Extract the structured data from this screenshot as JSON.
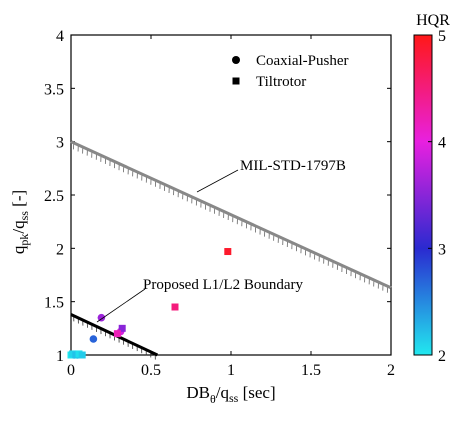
{
  "chart_data": {
    "type": "scatter",
    "title": "",
    "xlabel": {
      "main": "DB",
      "sub1": "θ",
      "mid": "/q",
      "sub2": "ss",
      "tail": " [sec]"
    },
    "ylabel": {
      "main": "q",
      "sub1": "pk",
      "mid": "/q",
      "sub2": "ss",
      "tail": " [-]"
    },
    "xlim": [
      0,
      2
    ],
    "ylim": [
      1,
      4
    ],
    "x_ticks": [
      0,
      0.5,
      1,
      1.5,
      2
    ],
    "x_tick_labels": [
      "0",
      "0.5",
      "1",
      "1.5",
      "2"
    ],
    "y_ticks": [
      1,
      1.5,
      2,
      2.5,
      3,
      3.5,
      4
    ],
    "y_tick_labels": [
      "1",
      "1.5",
      "2",
      "2.5",
      "3",
      "3.5",
      "4"
    ],
    "grid": false,
    "legend": {
      "placement": "top-right",
      "entries": [
        {
          "label": "Coaxial-Pusher",
          "marker": "circle"
        },
        {
          "label": "Tiltrotor",
          "marker": "square"
        }
      ]
    },
    "colorbar": {
      "title": "HQR",
      "min": 2,
      "max": 5,
      "ticks": [
        2,
        3,
        4,
        5
      ],
      "tick_labels": [
        "2",
        "3",
        "4",
        "5"
      ],
      "colors": [
        "#22e8ef",
        "#2a2ad0",
        "#e820e0",
        "#ff1818"
      ]
    },
    "series": [
      {
        "name": "Coaxial-Pusher",
        "marker": "circle",
        "points": [
          {
            "x": 0.14,
            "y": 1.15,
            "hqr": 2.7
          },
          {
            "x": 0.19,
            "y": 1.35,
            "hqr": 3.6
          },
          {
            "x": 0.31,
            "y": 1.22,
            "hqr": 3.9
          },
          {
            "x": 0.02,
            "y": 1.0,
            "hqr": 2.05
          },
          {
            "x": 0.04,
            "y": 1.0,
            "hqr": 2.1
          }
        ]
      },
      {
        "name": "Tiltrotor",
        "marker": "square",
        "points": [
          {
            "x": 0.98,
            "y": 1.97,
            "hqr": 4.9
          },
          {
            "x": 0.65,
            "y": 1.45,
            "hqr": 4.5
          },
          {
            "x": 0.32,
            "y": 1.25,
            "hqr": 3.5
          },
          {
            "x": 0.29,
            "y": 1.2,
            "hqr": 4.2
          },
          {
            "x": 0.0,
            "y": 1.0,
            "hqr": 2.0
          },
          {
            "x": 0.01,
            "y": 1.01,
            "hqr": 2.1
          },
          {
            "x": 0.03,
            "y": 1.0,
            "hqr": 2.2
          },
          {
            "x": 0.05,
            "y": 1.01,
            "hqr": 2.05
          },
          {
            "x": 0.07,
            "y": 1.0,
            "hqr": 2.15
          }
        ]
      }
    ],
    "boundaries": [
      {
        "label": "MIL-STD-1797B",
        "from": [
          0,
          3.0
        ],
        "to": [
          2,
          1.63
        ],
        "color": "#888888"
      },
      {
        "label": "Proposed L1/L2 Boundary",
        "from": [
          0,
          1.38
        ],
        "to": [
          0.54,
          1.0
        ],
        "color": "#000000"
      }
    ]
  }
}
